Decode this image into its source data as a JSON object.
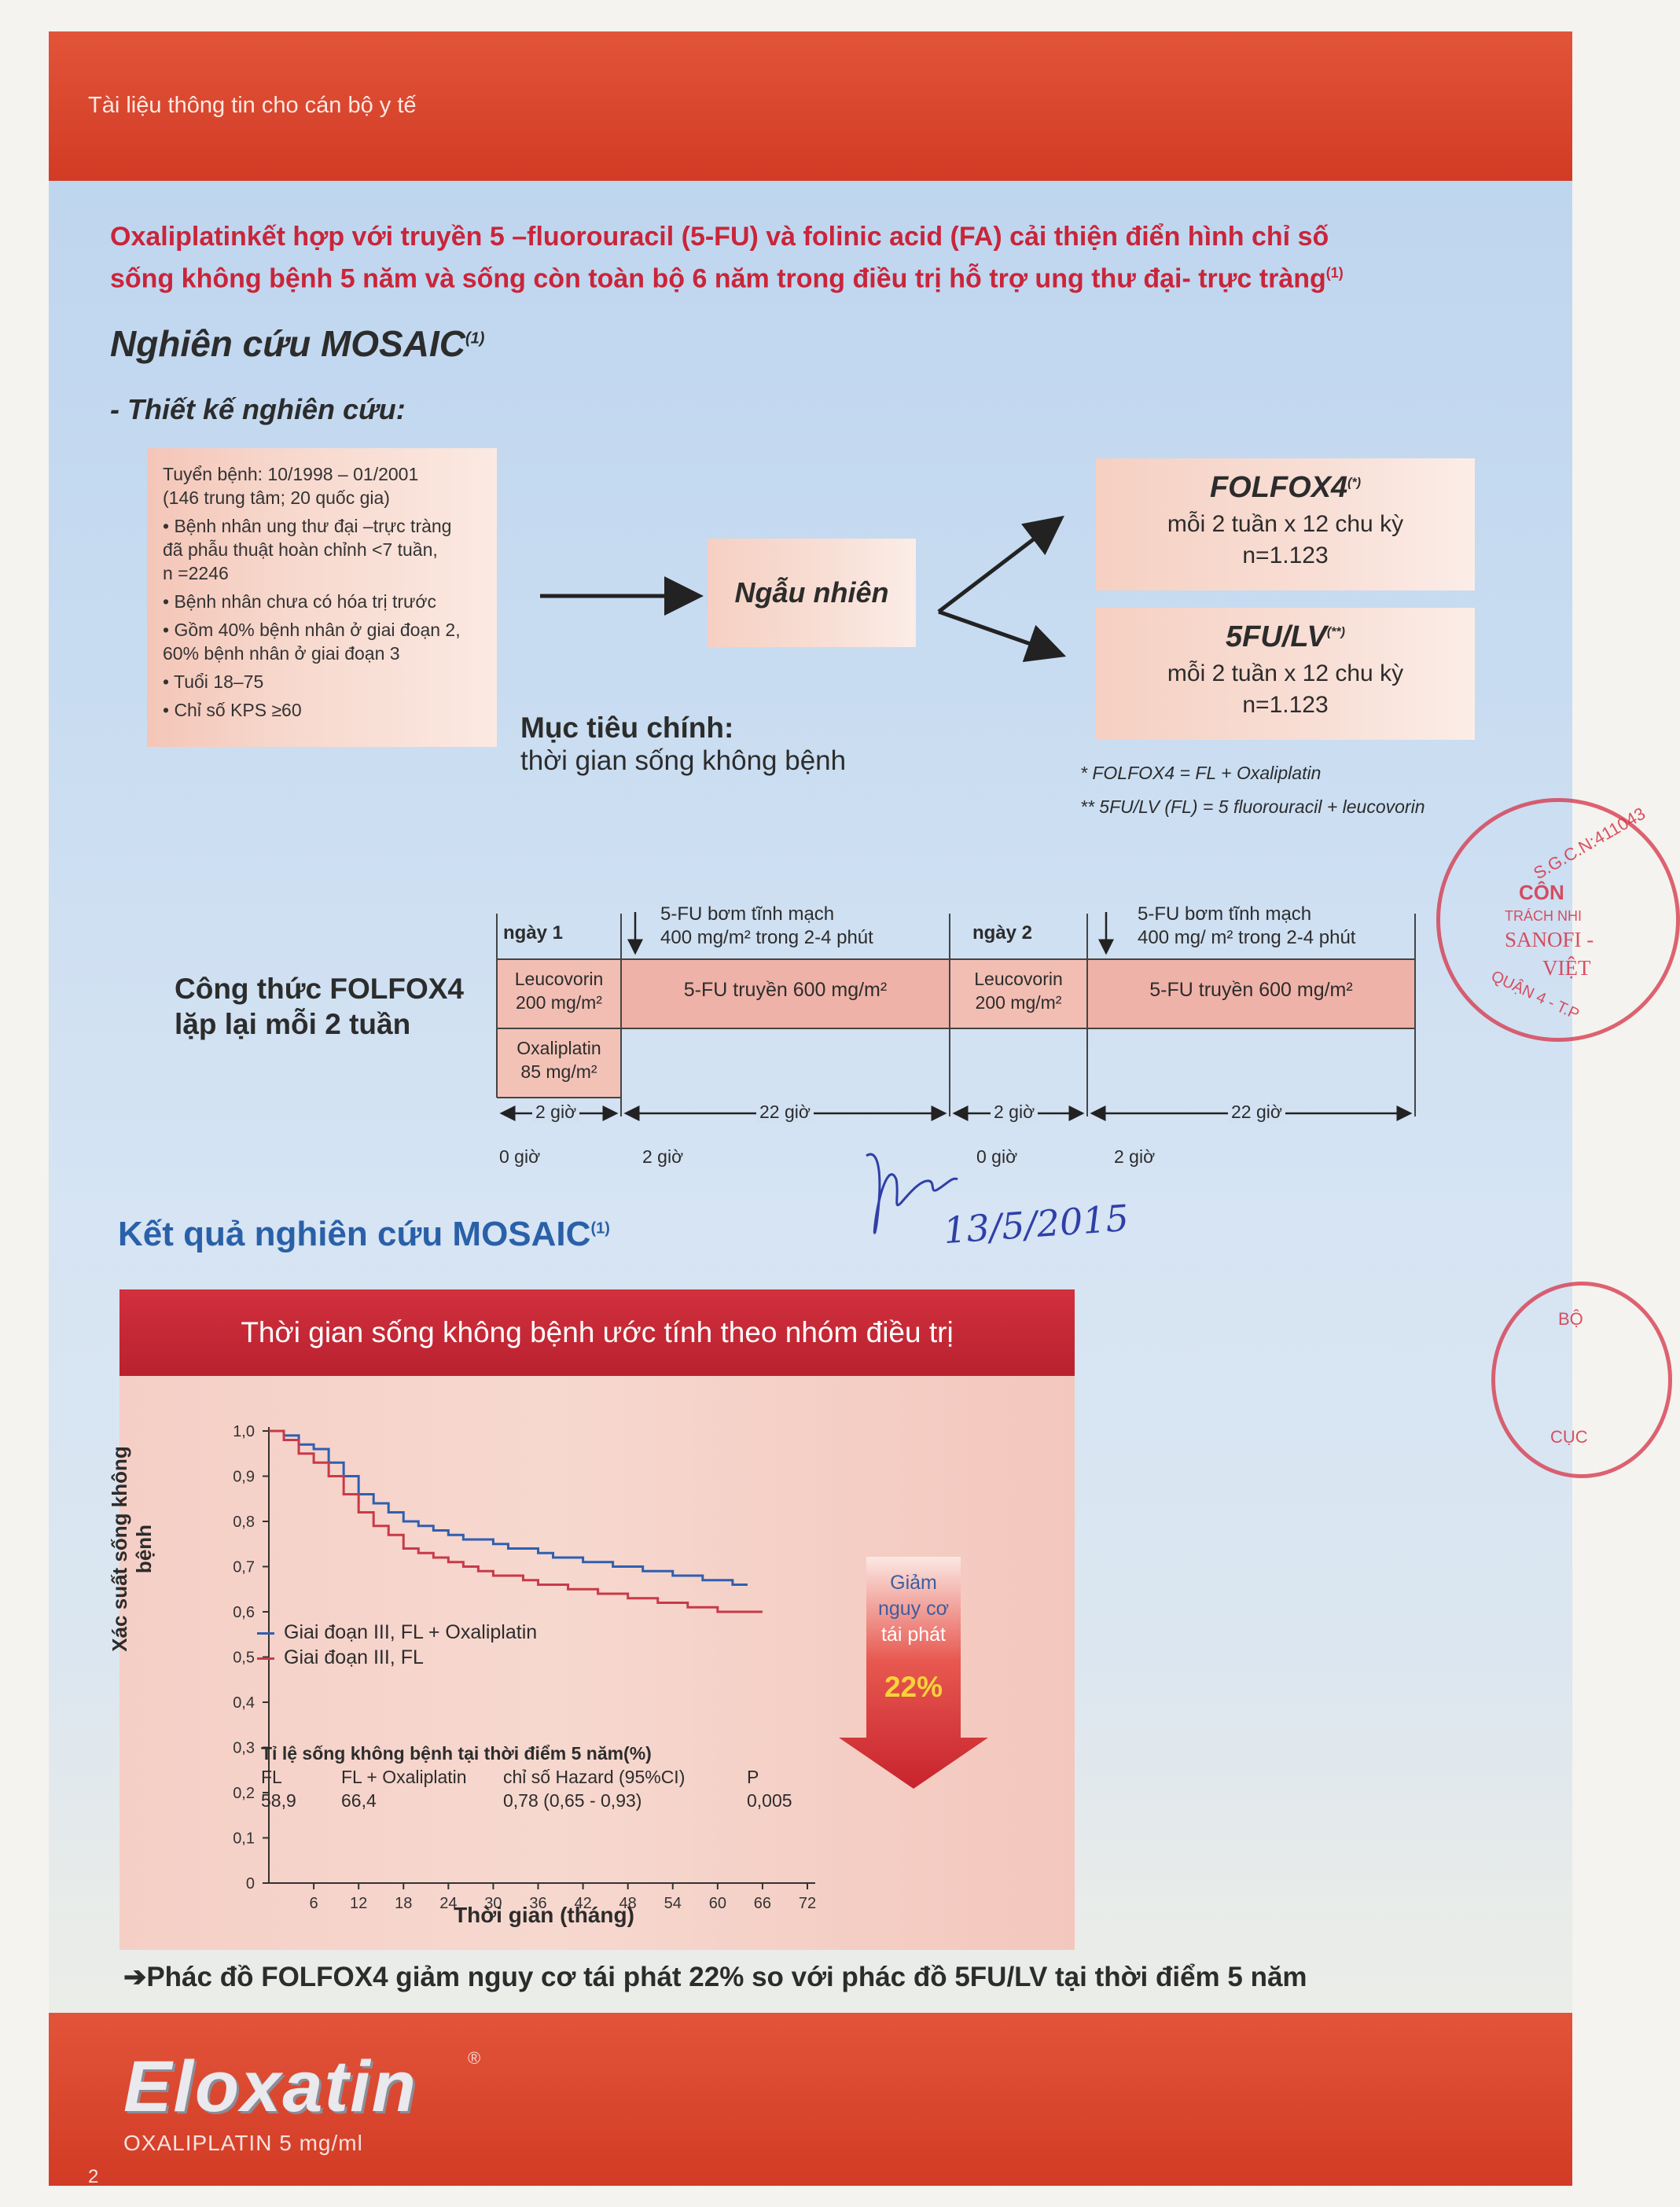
{
  "header": {
    "label": "Tài liệu thông tin cho cán bộ y tế"
  },
  "headline": {
    "line1": "Oxaliplatinkết hợp với truyền 5 –fluorouracil (5-FU) và folinic acid (FA) cải thiện điển hình chỉ số",
    "line2": "sống không bệnh 5 năm và sống còn toàn bộ 6 năm trong điều trị hỗ trợ ung thư đại- trực tràng",
    "ref": "(1)"
  },
  "study": {
    "title": "Nghiên cứu MOSAIC",
    "ref": "(1)",
    "design_heading": "- Thiết kế nghiên cứu:"
  },
  "enrollment": {
    "line1": "Tuyển bệnh: 10/1998 – 01/2001",
    "line2": "(146 trung tâm; 20 quốc gia)",
    "bullets": [
      "• Bệnh nhân ung thư đại –trực tràng",
      "đã phẫu thuật hoàn chỉnh <7 tuần,",
      "n =2246",
      "• Bệnh nhân chưa có hóa trị trước",
      "• Gồm 40% bệnh nhân ở giai đoạn 2,",
      "60% bệnh nhân ở giai đoạn 3",
      "• Tuổi 18–75",
      "• Chỉ số KPS ≥60"
    ]
  },
  "randomize": {
    "label": "Ngẫu nhiên"
  },
  "arms": [
    {
      "name": "FOLFOX4",
      "mark": "(*)",
      "schedule": "mỗi 2 tuần x 12 chu kỳ",
      "n": "n=1.123"
    },
    {
      "name": "5FU/LV",
      "mark": "(**)",
      "schedule": "mỗi 2 tuần x 12 chu kỳ",
      "n": "n=1.123"
    }
  ],
  "objective": {
    "title": "Mục tiêu chính:",
    "text": "thời gian sống không bệnh"
  },
  "footnotes": [
    "* FOLFOX4 = FL + Oxaliplatin",
    "** 5FU/LV (FL) = 5 fluorouracil + leucovorin"
  ],
  "regimen": {
    "title_line1": "Công thức FOLFOX4",
    "title_line2": "lặp lại mỗi 2 tuần",
    "day1": "ngày 1",
    "day2": "ngày 2",
    "bolus_line1": "5-FU bơm tĩnh mạch",
    "bolus_line2a": "400 mg/m² trong 2-4 phút",
    "bolus_line2b": "400 mg/ m² trong 2-4 phút",
    "leucovorin": "Leucovorin",
    "leucovorin_dose": "200 mg/m²",
    "oxaliplatin": "Oxaliplatin",
    "oxaliplatin_dose": "85 mg/m²",
    "infusion": "5-FU truyền 600 mg/m²",
    "dur_2h": "2 giờ",
    "dur_22h": "22 giờ",
    "t0": "0 giờ",
    "t2": "2 giờ"
  },
  "handwritten": {
    "date": "13/5/2015"
  },
  "results": {
    "title": "Kết quả nghiên cứu MOSAIC",
    "ref": "(1)"
  },
  "chart_title": "Thời gian sống không bệnh ước tính theo nhóm điều trị",
  "chart_data": {
    "type": "line",
    "title": "Thời gian sống không bệnh ước tính theo nhóm điều trị",
    "xlabel": "Thời gian (tháng)",
    "ylabel": "Xác suất sống không bệnh",
    "xlim": [
      0,
      72
    ],
    "ylim": [
      0,
      1.0
    ],
    "x_ticks": [
      6,
      12,
      18,
      24,
      30,
      36,
      42,
      48,
      54,
      60,
      66,
      72
    ],
    "y_ticks": [
      "0",
      "0,1",
      "0,2",
      "0,3",
      "0,4",
      "0,5",
      "0,6",
      "0,7",
      "0,8",
      "0,9",
      "1,0"
    ],
    "series": [
      {
        "name": "Giai đoạn III, FL + Oxaliplatin",
        "color": "#2f5fb0",
        "x": [
          0,
          2,
          4,
          6,
          8,
          10,
          12,
          14,
          16,
          18,
          20,
          22,
          24,
          26,
          28,
          30,
          32,
          34,
          36,
          38,
          40,
          42,
          44,
          46,
          48,
          50,
          52,
          54,
          56,
          58,
          60,
          62,
          64
        ],
        "y": [
          1.0,
          0.99,
          0.97,
          0.96,
          0.93,
          0.9,
          0.86,
          0.84,
          0.82,
          0.8,
          0.79,
          0.78,
          0.77,
          0.76,
          0.76,
          0.75,
          0.74,
          0.74,
          0.73,
          0.72,
          0.72,
          0.71,
          0.71,
          0.7,
          0.7,
          0.69,
          0.69,
          0.68,
          0.68,
          0.67,
          0.67,
          0.66,
          0.66
        ]
      },
      {
        "name": "Giai đoạn III, FL",
        "color": "#c83a48",
        "x": [
          0,
          2,
          4,
          6,
          8,
          10,
          12,
          14,
          16,
          18,
          20,
          22,
          24,
          26,
          28,
          30,
          32,
          34,
          36,
          38,
          40,
          42,
          44,
          46,
          48,
          50,
          52,
          54,
          56,
          58,
          60,
          62,
          64,
          66
        ],
        "y": [
          1.0,
          0.98,
          0.95,
          0.93,
          0.9,
          0.86,
          0.82,
          0.79,
          0.77,
          0.74,
          0.73,
          0.72,
          0.71,
          0.7,
          0.69,
          0.68,
          0.68,
          0.67,
          0.66,
          0.66,
          0.65,
          0.65,
          0.64,
          0.64,
          0.63,
          0.63,
          0.62,
          0.62,
          0.61,
          0.61,
          0.6,
          0.6,
          0.6,
          0.6
        ]
      }
    ],
    "stats": {
      "heading": "Tỉ lệ sống không bệnh tại thời điểm 5 năm(%)",
      "columns": [
        "FL",
        "FL + Oxaliplatin",
        "chỉ số Hazard (95%CI)",
        "P"
      ],
      "values": [
        "58,9",
        "66,4",
        "0,78 (0,65 - 0,93)",
        "0,005"
      ]
    },
    "callout": {
      "line1": "Giảm",
      "line2": "nguy cơ",
      "line3": "tái phát",
      "value": "22%"
    }
  },
  "conclusion": "➔Phác đồ FOLFOX4 giảm nguy cơ tái phát 22% so với phác đồ 5FU/LV  tại thời điểm 5 năm",
  "footer": {
    "brand": "Eloxatin",
    "reg": "®",
    "product": "OXALIPLATIN 5 mg/ml",
    "page": "2"
  },
  "stamps": {
    "stamp1": [
      "S.G.C.N:411043",
      "CÔN",
      "TRÁCH NHI",
      "SANOFI -",
      "VIỆT",
      "QUẬN 4 - T.P"
    ],
    "stamp2": [
      "BỘ",
      "CỤC"
    ]
  }
}
